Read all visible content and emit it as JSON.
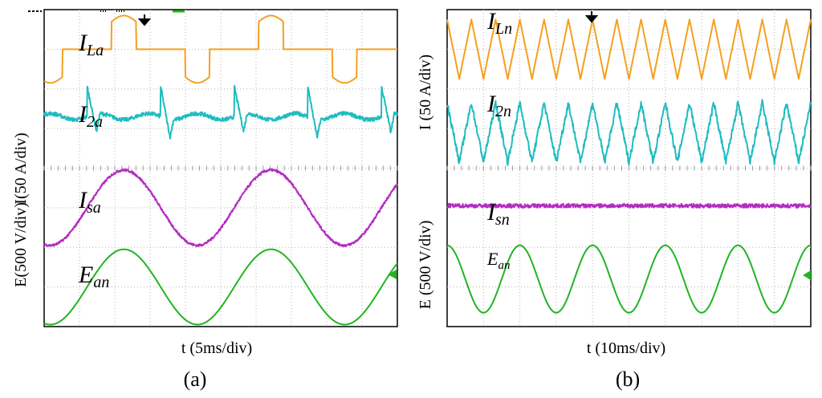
{
  "figure_labels": {
    "left_panel": "(a)",
    "right_panel": "(b)"
  },
  "colors": {
    "orange": "#f5a01e",
    "cyan": "#1fbcc0",
    "magenta": "#b42cc1",
    "green": "#22b422"
  },
  "chart_data": [
    {
      "type": "line",
      "title": "(a)",
      "xlabel": "t (5ms/div)",
      "ylabel_top": "I(50 A/div)",
      "ylabel_bottom": "E(500 V/div)",
      "x_divisions": 10,
      "y_divisions": 8,
      "series": [
        {
          "name": "I_La",
          "base": "I",
          "sub": "La",
          "color": "orange",
          "shape": "stepped-sine",
          "center_div": 1.0,
          "amplitude_div": 0.85,
          "cycles": 2.4,
          "phase_deg": 255,
          "noise": 0.0
        },
        {
          "name": "I_2a",
          "base": "I",
          "sub": "2a",
          "color": "cyan",
          "shape": "ripple-spikes",
          "center_div": 2.7,
          "amplitude_div": 0.55,
          "cycles": 2.4,
          "phase_deg": 255,
          "noise": 0.05
        },
        {
          "name": "I_sa",
          "base": "I",
          "sub": "sa",
          "color": "magenta",
          "shape": "sine",
          "center_div": 5.0,
          "amplitude_div": 0.95,
          "cycles": 2.4,
          "phase_deg": 255,
          "noise": 0.03
        },
        {
          "name": "E_an",
          "base": "E",
          "sub": "an",
          "color": "green",
          "shape": "sine",
          "center_div": 7.0,
          "amplitude_div": 0.95,
          "cycles": 2.4,
          "phase_deg": 255,
          "noise": 0.0
        }
      ]
    },
    {
      "type": "line",
      "title": "(b)",
      "xlabel": "t (10ms/div)",
      "ylabel_top": "I (50 A/div)",
      "ylabel_bottom": "E (500 V/div)",
      "x_divisions": 10,
      "y_divisions": 8,
      "series": [
        {
          "name": "I_Ln",
          "base": "I",
          "sub": "Ln",
          "color": "orange",
          "shape": "triangle",
          "center_div": 1.0,
          "amplitude_div": 0.75,
          "cycles": 15,
          "phase_deg": 90,
          "noise": 0.0
        },
        {
          "name": "I_2n",
          "base": "I",
          "sub": "2n",
          "color": "cyan",
          "shape": "triangle",
          "center_div": 3.1,
          "amplitude_div": 0.75,
          "cycles": 15,
          "phase_deg": 90,
          "noise": 0.08
        },
        {
          "name": "I_sn",
          "base": "I",
          "sub": "sn",
          "color": "magenta",
          "shape": "flat",
          "center_div": 4.95,
          "amplitude_div": 0.0,
          "cycles": 0,
          "phase_deg": 0,
          "noise": 0.05
        },
        {
          "name": "E_an",
          "base": "E",
          "sub": "an",
          "color": "green",
          "shape": "sine",
          "center_div": 6.8,
          "amplitude_div": 0.85,
          "cycles": 5,
          "phase_deg": 90,
          "noise": 0.0
        }
      ]
    }
  ]
}
